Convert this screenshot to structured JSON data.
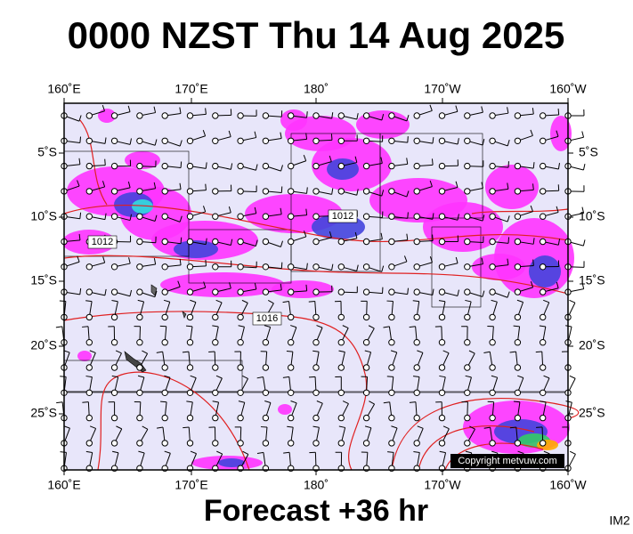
{
  "header": {
    "title": "0000 NZST Thu 14 Aug 2025"
  },
  "map": {
    "lon_labels": [
      "160˚E",
      "170˚E",
      "180˚",
      "170˚W",
      "160˚W"
    ],
    "lat_labels": [
      "5˚S",
      "10˚S",
      "15˚S",
      "20˚S",
      "25˚S"
    ],
    "isobar_labels": [
      "1012",
      "1012",
      "1016"
    ],
    "copyright": "Copyright metvuw.com"
  },
  "footer": {
    "forecast": "Forecast +36 hr",
    "code": "IM2"
  }
}
